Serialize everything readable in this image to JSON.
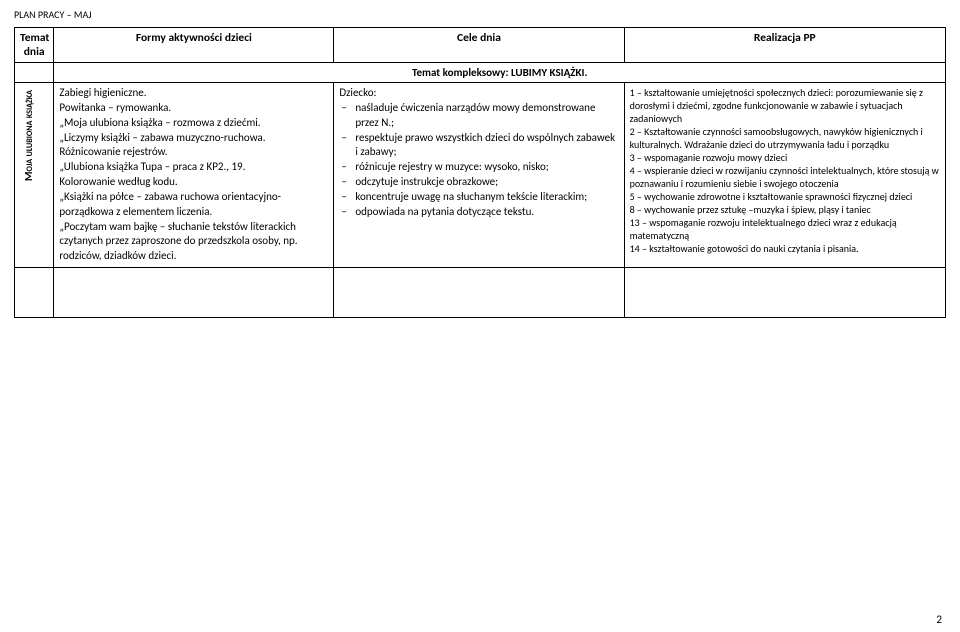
{
  "header": "PLAN PRACY – MAJ",
  "columns": {
    "c1": "Temat dnia",
    "c2": "Formy aktywności dzieci",
    "c3": "Cele dnia",
    "c4": "Realizacja PP"
  },
  "kompleks": "Temat kompleksowy: LUBIMY KSIĄŻKI.",
  "row": {
    "topic": "Moja ulubiona książka",
    "forms": [
      "Zabiegi higieniczne.",
      "Powitanka – rymowanka.",
      "„Moja ulubiona książka – rozmowa z dziećmi.",
      "„Liczymy książki – zabawa muzyczno-ruchowa.",
      "Różnicowanie rejestrów.",
      "„Ulubiona książka Tupa – praca z KP2., 19.",
      "Kolorowanie według kodu.",
      "„Książki na półce – zabawa ruchowa orientacyjno-porządkowa z elementem liczenia.",
      "„Poczytam wam bajkę – słuchanie tekstów literackich czytanych przez zaproszone do przedszkola osoby, np. rodziców, dziadków dzieci."
    ],
    "goals_intro": "Dziecko:",
    "goals": [
      "naśladuje ćwiczenia narządów mowy demonstrowane przez N.;",
      "respektuje prawo wszystkich dzieci do wspólnych zabawek i zabawy;",
      "różnicuje rejestry w muzyce: wysoko, nisko;",
      "odczytuje instrukcje obrazkowe;",
      "koncentruje uwagę na słuchanym tekście literackim;",
      "odpowiada na pytania dotyczące tekstu."
    ],
    "pp": [
      "1 – kształtowanie umiejętności społecznych dzieci: porozumiewanie się z dorosłymi i dziećmi, zgodne funkcjonowanie w zabawie i sytuacjach zadaniowych",
      "2 – Kształtowanie czynności samoobsługowych, nawyków higienicznych i kulturalnych. Wdrażanie dzieci do utrzymywania ładu i porządku",
      "3 – wspomaganie rozwoju mowy dzieci",
      "4 – wspieranie dzieci w rozwijaniu czynności intelektualnych, które stosują w poznawaniu i rozumieniu siebie i swojego otoczenia",
      "5 – wychowanie zdrowotne i kształtowanie sprawności fizycznej dzieci",
      "8 – wychowanie przez sztukę –muzyka i śpiew, pląsy i taniec",
      "13 – wspomaganie rozwoju intelektualnego dzieci wraz z edukacją matematyczną",
      "14 – kształtowanie gotowości do nauki czytania i pisania."
    ]
  },
  "pageNum": "2"
}
